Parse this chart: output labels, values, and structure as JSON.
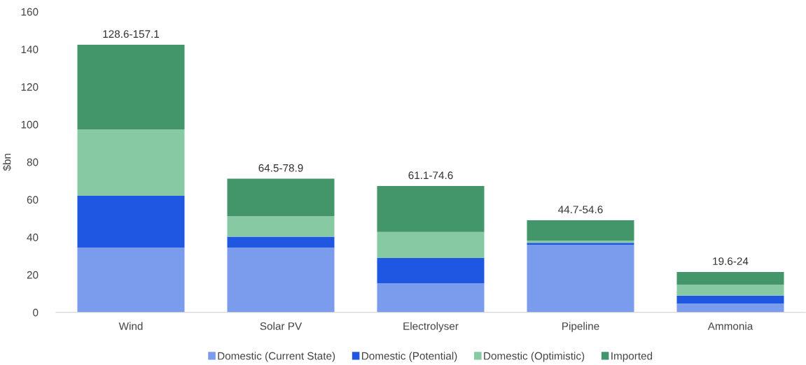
{
  "chart_data": {
    "type": "bar",
    "stacked": true,
    "ylabel": "$bn",
    "categories": [
      "Wind",
      "Solar PV",
      "Electrolyser",
      "Pipeline",
      "Ammonia"
    ],
    "series": [
      {
        "name": "Domestic (Current State)",
        "color": "#7b9bec",
        "values": [
          34.5,
          34.5,
          15.5,
          36.0,
          4.6
        ]
      },
      {
        "name": "Domestic (Potential)",
        "color": "#1f57e2",
        "values": [
          27.5,
          5.8,
          13.4,
          1.0,
          4.3
        ]
      },
      {
        "name": "Domestic (Optimistic)",
        "color": "#86c9a3",
        "values": [
          35.4,
          10.8,
          13.9,
          1.2,
          5.8
        ]
      },
      {
        "name": "Imported",
        "color": "#43956a",
        "values": [
          45.0,
          20.0,
          24.4,
          10.8,
          6.8
        ]
      }
    ],
    "totals": [
      "128.6-157.1",
      "64.5-78.9",
      "61.1-74.6",
      "44.7-54.6",
      "19.6-24"
    ],
    "ylim": [
      0,
      160
    ],
    "yticks": [
      0,
      20,
      40,
      60,
      80,
      100,
      120,
      140,
      160
    ],
    "legend": "bottom",
    "grid": false
  }
}
